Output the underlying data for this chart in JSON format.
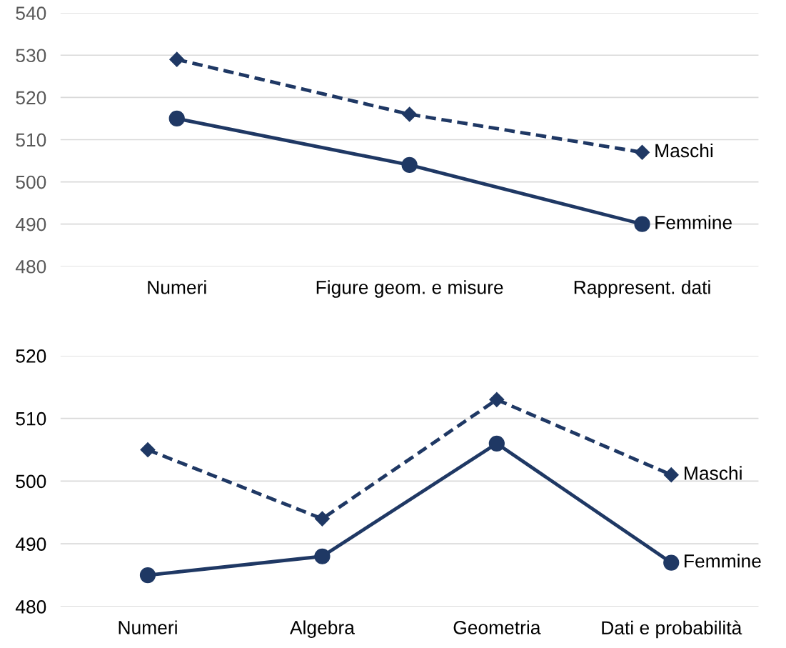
{
  "chart_data": [
    {
      "type": "line",
      "categories": [
        "Numeri",
        "Figure geom. e misure",
        "Rappresent. dati"
      ],
      "ylim": [
        480,
        540
      ],
      "yticks": [
        480,
        490,
        500,
        510,
        520,
        530,
        540
      ],
      "grid": "y",
      "legend": false,
      "series": [
        {
          "name": "Maschi",
          "color": "#1f3864",
          "values": [
            529,
            516,
            507
          ],
          "marker": "diamond",
          "line_style": "dashed"
        },
        {
          "name": "Femmine",
          "color": "#1f3864",
          "values": [
            515,
            504,
            490
          ],
          "marker": "circle",
          "line_style": "solid"
        }
      ]
    },
    {
      "type": "line",
      "categories": [
        "Numeri",
        "Algebra",
        "Geometria",
        "Dati e probabilità"
      ],
      "ylim": [
        480,
        520
      ],
      "yticks": [
        480,
        490,
        500,
        510,
        520
      ],
      "grid": "y",
      "legend": false,
      "series": [
        {
          "name": "Maschi",
          "color": "#1f3864",
          "values": [
            505,
            494,
            513,
            501
          ],
          "marker": "diamond",
          "line_style": "dashed"
        },
        {
          "name": "Femmine",
          "color": "#1f3864",
          "values": [
            485,
            488,
            506,
            487
          ],
          "marker": "circle",
          "line_style": "solid"
        }
      ]
    }
  ]
}
